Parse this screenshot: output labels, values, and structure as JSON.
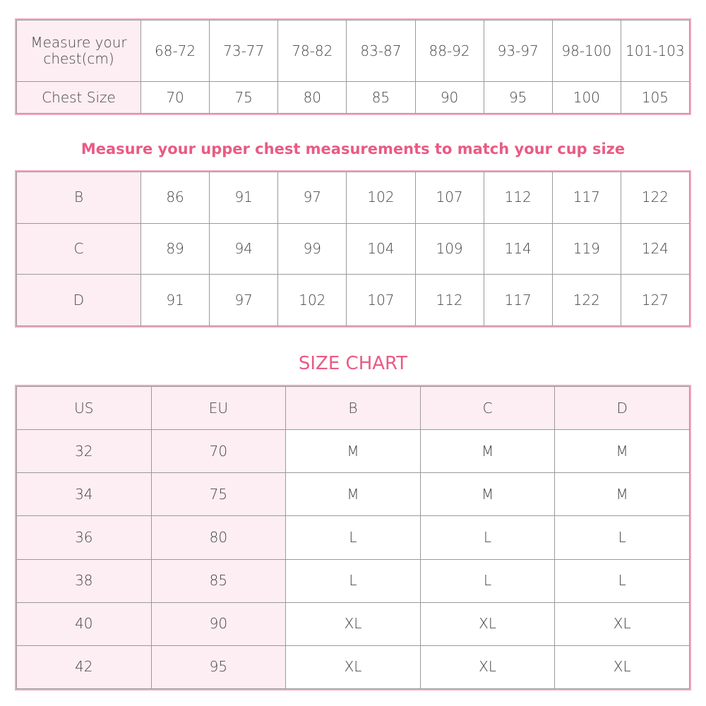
{
  "table1": {
    "rows": [
      {
        "label": "Measure your chest(cm)",
        "values": [
          "68-72",
          "73-77",
          "78-82",
          "83-87",
          "88-92",
          "93-97",
          "98-100",
          "101-103"
        ]
      },
      {
        "label": "Chest Size",
        "values": [
          "70",
          "75",
          "80",
          "85",
          "90",
          "95",
          "100",
          "105"
        ]
      }
    ]
  },
  "cup_title": "Measure your upper chest measurements to match your cup size",
  "table2": {
    "rows": [
      {
        "label": "B",
        "values": [
          "86",
          "91",
          "97",
          "102",
          "107",
          "112",
          "117",
          "122"
        ]
      },
      {
        "label": "C",
        "values": [
          "89",
          "94",
          "99",
          "104",
          "109",
          "114",
          "119",
          "124"
        ]
      },
      {
        "label": "D",
        "values": [
          "91",
          "97",
          "102",
          "107",
          "112",
          "117",
          "122",
          "127"
        ]
      }
    ]
  },
  "size_title": "SIZE CHART",
  "table3": {
    "headers": [
      "US",
      "EU",
      "B",
      "C",
      "D"
    ],
    "rows": [
      [
        "32",
        "70",
        "M",
        "M",
        "M"
      ],
      [
        "34",
        "75",
        "M",
        "M",
        "M"
      ],
      [
        "36",
        "80",
        "L",
        "L",
        "L"
      ],
      [
        "38",
        "85",
        "L",
        "L",
        "L"
      ],
      [
        "40",
        "90",
        "XL",
        "XL",
        "XL"
      ],
      [
        "42",
        "95",
        "XL",
        "XL",
        "XL"
      ]
    ]
  },
  "colors": {
    "accent": "#e95b84",
    "header_bg": "#fdeef3",
    "outer_border": "#f0a9bd",
    "grid": "#9a9a9a"
  }
}
